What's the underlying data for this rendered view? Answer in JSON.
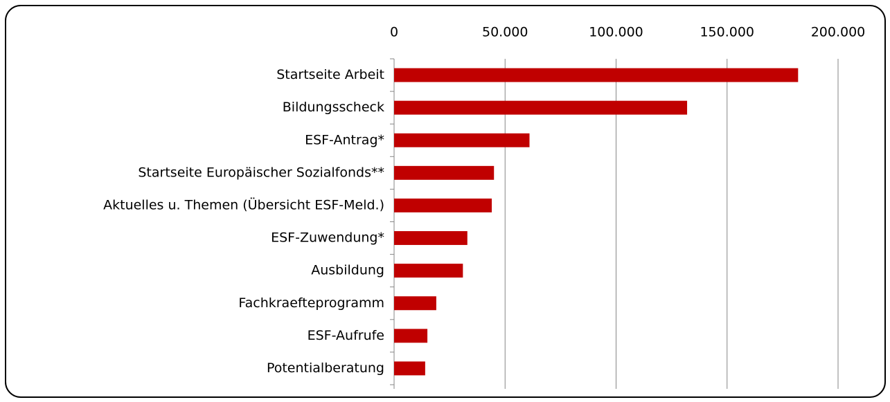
{
  "chart_data": {
    "type": "bar",
    "orientation": "horizontal",
    "categories": [
      "Startseite Arbeit",
      "Bildungsscheck",
      "ESF-Antrag*",
      "Startseite Europäischer Sozialfonds**",
      "Aktuelles u. Themen (Übersicht ESF-Meld.)",
      "ESF-Zuwendung*",
      "Ausbildung",
      "Fachkraefteprogramm",
      "ESF-Aufrufe",
      "Potentialberatung"
    ],
    "values": [
      182000,
      132000,
      61000,
      45000,
      44000,
      33000,
      31000,
      19000,
      15000,
      14000
    ],
    "color": "#c00000",
    "xlim": [
      0,
      200000
    ],
    "xticks": [
      0,
      {
        "value": 50000,
        "label": "50.000"
      },
      {
        "value": 100000,
        "label": "100.000"
      },
      {
        "value": 150000,
        "label": "150.000"
      },
      {
        "value": 200000,
        "label": "200.000"
      }
    ],
    "grid": true
  }
}
